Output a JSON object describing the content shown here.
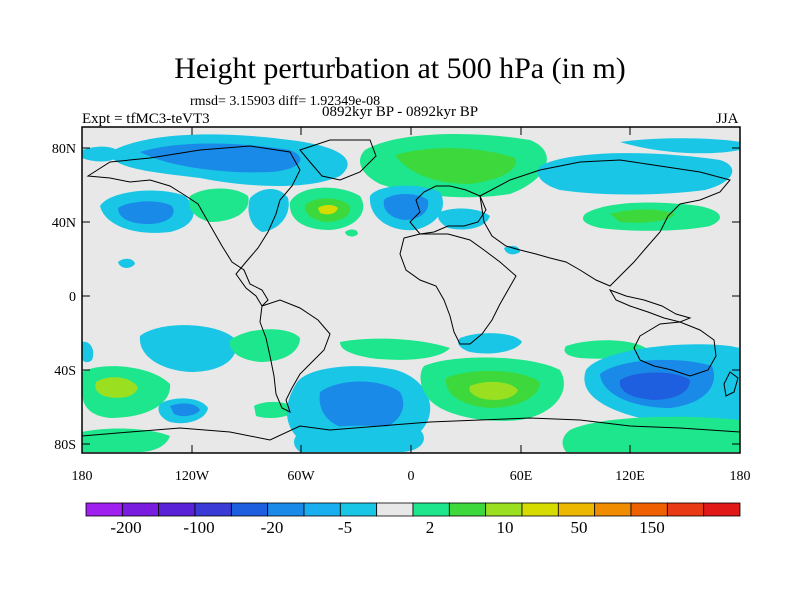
{
  "title": "Height perturbation at 500 hPa (in m)",
  "stats": "rmsd= 3.15903 diff= 1.92349e-08",
  "experiment": "Expt = tfMC3-teVT3",
  "period": "0892kyr BP - 0892kyr BP",
  "season": "JJA",
  "lat_labels": [
    "80N",
    "40N",
    "0",
    "40S",
    "80S"
  ],
  "lon_labels": [
    "180",
    "120W",
    "60W",
    "0",
    "60E",
    "120E",
    "180"
  ],
  "colorbar": {
    "colors": [
      "#a020f0",
      "#7a1ce0",
      "#5a22d6",
      "#3a3ad6",
      "#1e5fe0",
      "#1a8ae8",
      "#18aef0",
      "#19c6e6",
      "#e8e8e8",
      "#1ee68c",
      "#3cd83c",
      "#9ae020",
      "#d6dc00",
      "#ecb800",
      "#f08c00",
      "#ee6000",
      "#e83a14",
      "#e01818"
    ],
    "labels": [
      "-200",
      "-100",
      "-20",
      "-5",
      "2",
      "10",
      "50",
      "150"
    ]
  },
  "field_colors": {
    "light_blue": "#19c6e6",
    "blue": "#1a8ae8",
    "deep_blue": "#1e5fe0",
    "green": "#1ee68c",
    "mid_green": "#3cd83c",
    "yellow_green": "#9ae020",
    "yellow": "#d6dc00",
    "background": "#e8e8e8"
  }
}
